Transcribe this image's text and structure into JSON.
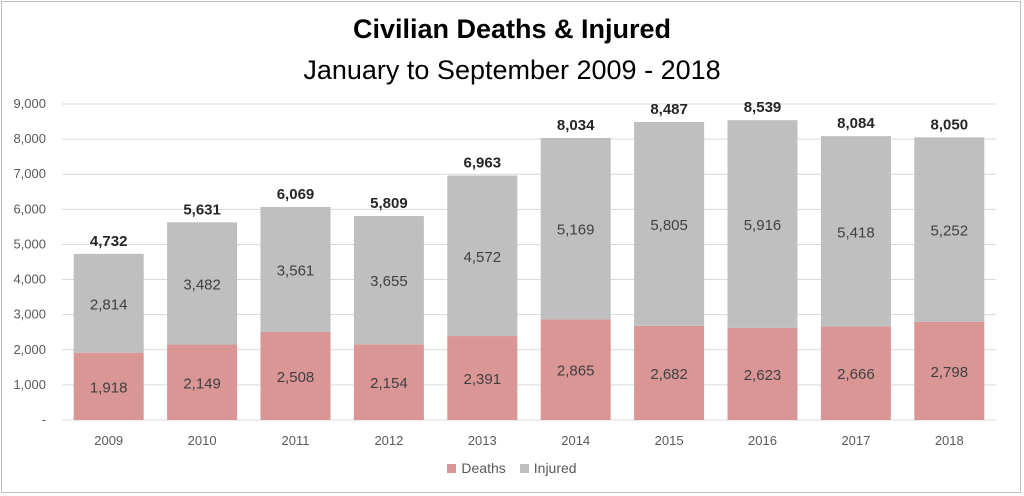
{
  "chart_data": {
    "type": "bar",
    "stacked": true,
    "title": "Civilian Deaths & Injured",
    "subtitle": "January to September 2009 - 2018",
    "categories": [
      "2009",
      "2010",
      "2011",
      "2012",
      "2013",
      "2014",
      "2015",
      "2016",
      "2017",
      "2018"
    ],
    "series": [
      {
        "name": "Deaths",
        "color": "#d99694",
        "values": [
          1918,
          2149,
          2508,
          2154,
          2391,
          2865,
          2682,
          2623,
          2666,
          2798
        ]
      },
      {
        "name": "Injured",
        "color": "#bfbfbf",
        "values": [
          2814,
          3482,
          3561,
          3655,
          4572,
          5169,
          5805,
          5916,
          5418,
          5252
        ]
      }
    ],
    "totals": [
      4732,
      5631,
      6069,
      5809,
      6963,
      8034,
      8487,
      8539,
      8084,
      8050
    ],
    "ylim": [
      0,
      9000
    ],
    "yticks": [
      0,
      1000,
      2000,
      3000,
      4000,
      5000,
      6000,
      7000,
      8000,
      9000
    ],
    "ytick_labels": [
      "-",
      "1,000",
      "2,000",
      "3,000",
      "4,000",
      "5,000",
      "6,000",
      "7,000",
      "8,000",
      "9,000"
    ],
    "grid": true,
    "legend_position": "bottom"
  }
}
